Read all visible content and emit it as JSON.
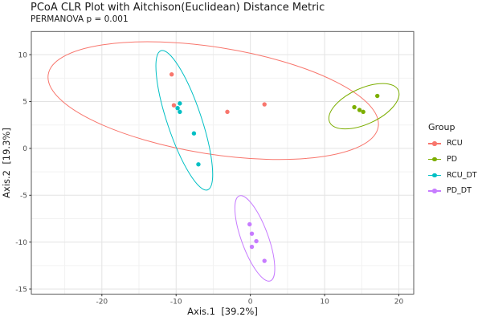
{
  "chart_data": {
    "type": "scatter",
    "title": "PCoA CLR Plot with Aitchison(Euclidean) Distance Metric",
    "subtitle": "PERMANOVA p = 0.001",
    "xlabel": "Axis.1  [39.2%]",
    "ylabel": "Axis.2  [19.3%]",
    "xlim": [
      -29.5,
      22.0
    ],
    "ylim": [
      -15.55,
      12.47
    ],
    "xticks_major": [
      -20,
      -10,
      0,
      10,
      20
    ],
    "xticks_minor": [
      -25,
      -15,
      -5,
      5,
      15
    ],
    "yticks_major": [
      -15,
      -10,
      -5,
      0,
      5,
      10
    ],
    "yticks_minor": [
      -12.5,
      -7.5,
      -2.5,
      2.5,
      7.5
    ],
    "grid": true,
    "legend": {
      "title": "Group",
      "position": "right",
      "items": [
        "RCU",
        "PD",
        "RCU_DT",
        "PD_DT"
      ]
    },
    "groups": [
      {
        "name": "RCU",
        "color": "#F8766D",
        "points": [
          [
            -10.6,
            7.9
          ],
          [
            -10.3,
            4.6
          ],
          [
            -3.1,
            3.9
          ],
          [
            1.9,
            4.7
          ]
        ],
        "ellipse": {
          "cx": -5.0,
          "cy": 5.1,
          "a": 22.5,
          "b": 7.2,
          "angle_deg": 9
        }
      },
      {
        "name": "PD",
        "color": "#7CAE00",
        "points": [
          [
            17.1,
            5.6
          ],
          [
            14.0,
            4.4
          ],
          [
            14.7,
            4.1
          ],
          [
            15.2,
            3.9
          ]
        ],
        "ellipse": {
          "cx": 15.3,
          "cy": 4.5,
          "a": 5.1,
          "b": 2.4,
          "angle_deg": -25
        }
      },
      {
        "name": "RCU_DT",
        "color": "#00BFC4",
        "points": [
          [
            -9.5,
            4.8
          ],
          [
            -9.8,
            4.3
          ],
          [
            -9.5,
            3.9
          ],
          [
            -7.6,
            1.6
          ],
          [
            -7.0,
            -1.7
          ]
        ],
        "ellipse": {
          "cx": -8.9,
          "cy": 3.0,
          "a": 9.9,
          "b": 2.3,
          "angle_deg": 71.5
        }
      },
      {
        "name": "PD_DT",
        "color": "#C77CFF",
        "points": [
          [
            -0.1,
            -8.1
          ],
          [
            0.2,
            -9.1
          ],
          [
            0.8,
            -9.9
          ],
          [
            0.2,
            -10.5
          ],
          [
            1.9,
            -12.0
          ]
        ],
        "ellipse": {
          "cx": 0.6,
          "cy": -9.6,
          "a": 6.1,
          "b": 1.8,
          "angle_deg": 70
        }
      }
    ],
    "style": {
      "background": "#ffffff",
      "panel_border": "#595959",
      "grid_major": "#e3e3e3",
      "grid_minor": "#f2f2f2",
      "tick_color": "#333333",
      "tick_label_color": "#4d4d4d",
      "text_color": "#1a1a1a",
      "point_radius_px": 2.7,
      "ellipse_stroke_px": 1
    }
  }
}
